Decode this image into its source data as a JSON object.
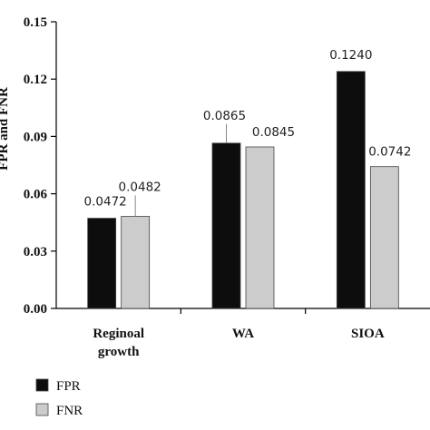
{
  "chart_data": {
    "type": "bar",
    "title": "",
    "xlabel": "",
    "ylabel": "FPR and FNR",
    "ylim": [
      0,
      0.15
    ],
    "yticks": [
      "0.00",
      "0.03",
      "0.06",
      "0.09",
      "0.12",
      "0.15"
    ],
    "categories": [
      [
        "Reginoal",
        "growth"
      ],
      [
        "WA"
      ],
      [
        "SIOA"
      ]
    ],
    "series": [
      {
        "name": "FPR",
        "values": [
          0.0472,
          0.0865,
          0.124
        ],
        "labels": [
          "0.0472",
          "0.0865",
          "0.1240"
        ],
        "color": "#0d0d0d"
      },
      {
        "name": "FNR",
        "values": [
          0.0482,
          0.0845,
          0.0742
        ],
        "labels": [
          "0.0482",
          "0.0845",
          "0.0742"
        ],
        "color": "#cccccc"
      }
    ],
    "legend_position": "bottom-left",
    "grid": false
  }
}
